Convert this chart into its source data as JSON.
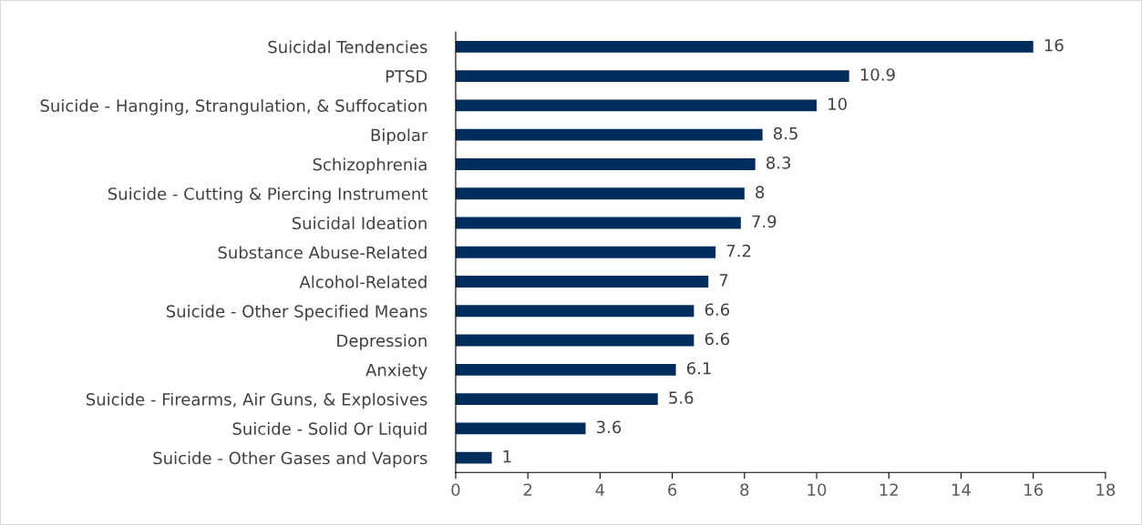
{
  "chart_data": {
    "type": "bar",
    "orientation": "horizontal",
    "categories": [
      "Suicidal Tendencies",
      "PTSD",
      "Suicide - Hanging, Strangulation, & Suffocation",
      "Bipolar",
      "Schizophrenia",
      "Suicide - Cutting & Piercing Instrument",
      "Suicidal Ideation",
      "Substance Abuse-Related",
      "Alcohol-Related",
      "Suicide - Other Specified Means",
      "Depression",
      "Anxiety",
      "Suicide - Firearms, Air Guns, & Explosives",
      "Suicide - Solid Or Liquid",
      "Suicide - Other Gases and Vapors"
    ],
    "values": [
      16,
      10.9,
      10,
      8.5,
      8.3,
      8,
      7.9,
      7.2,
      7,
      6.6,
      6.6,
      6.1,
      5.6,
      3.6,
      1
    ],
    "color": "#002d5c",
    "xlim": [
      0,
      18
    ],
    "xticks": [
      0,
      2,
      4,
      6,
      8,
      10,
      12,
      14,
      16,
      18
    ],
    "data_labels": true,
    "grid": false,
    "legend": false
  }
}
